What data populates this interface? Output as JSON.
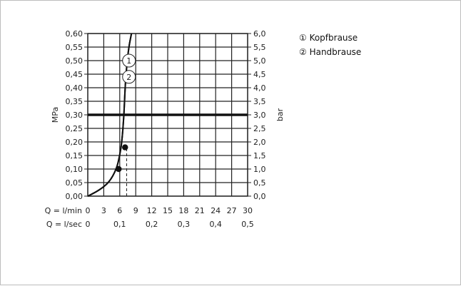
{
  "chart_data": {
    "type": "line",
    "title": "",
    "y_left": {
      "label": "MPa",
      "range": [
        0,
        0.6
      ],
      "ticks": [
        "0,00",
        "0,05",
        "0,10",
        "0,15",
        "0,20",
        "0,25",
        "0,30",
        "0,35",
        "0,40",
        "0,45",
        "0,50",
        "0,55",
        "0,60"
      ]
    },
    "y_right": {
      "label": "bar",
      "range": [
        0,
        6
      ],
      "ticks": [
        "0,0",
        "0,5",
        "1,0",
        "1,5",
        "2,0",
        "2,5",
        "3,0",
        "3,5",
        "4,0",
        "4,5",
        "5,0",
        "5,5",
        "6,0"
      ]
    },
    "x_lmin": {
      "label": "Q = l/min",
      "range": [
        0,
        30
      ],
      "ticks": [
        "0",
        "3",
        "6",
        "9",
        "12",
        "15",
        "18",
        "21",
        "24",
        "27",
        "30"
      ]
    },
    "x_lsec": {
      "label": "Q = l/sec",
      "ticks": [
        "0",
        "0,1",
        "0,2",
        "0,3",
        "0,4",
        "0,5"
      ]
    },
    "grid": true,
    "reference_line": {
      "y_mpa": 0.3
    },
    "series": [
      {
        "name": "Kopfbrause",
        "marker": "①",
        "x": [
          0,
          2,
          4,
          5.4,
          6.0,
          6.4,
          6.8,
          7.0,
          7.3,
          7.7,
          8.2
        ],
        "y": [
          0,
          0.02,
          0.05,
          0.1,
          0.15,
          0.2,
          0.3,
          0.4,
          0.48,
          0.55,
          0.6
        ]
      },
      {
        "name": "Handbrause",
        "marker": "②",
        "x": [
          0,
          2,
          4,
          5.4,
          6.0,
          6.4,
          6.8,
          7.0,
          7.3,
          7.7,
          8.2
        ],
        "y": [
          0,
          0.02,
          0.05,
          0.1,
          0.15,
          0.2,
          0.3,
          0.4,
          0.48,
          0.55,
          0.6
        ]
      }
    ],
    "points": [
      {
        "x": 5.8,
        "y": 0.1
      },
      {
        "x": 7.0,
        "y": 0.18
      }
    ],
    "dashed_verticals": [
      {
        "x": 7.3,
        "y_from": 0.0,
        "y_to": 0.18
      }
    ],
    "curve_labels": [
      {
        "text": "1",
        "x": 7.6,
        "y": 0.5
      },
      {
        "text": "2",
        "x": 7.6,
        "y": 0.44
      }
    ],
    "legend": {
      "placement": "top-right",
      "items": [
        "① Kopfbrause",
        "② Handbrause"
      ]
    }
  }
}
